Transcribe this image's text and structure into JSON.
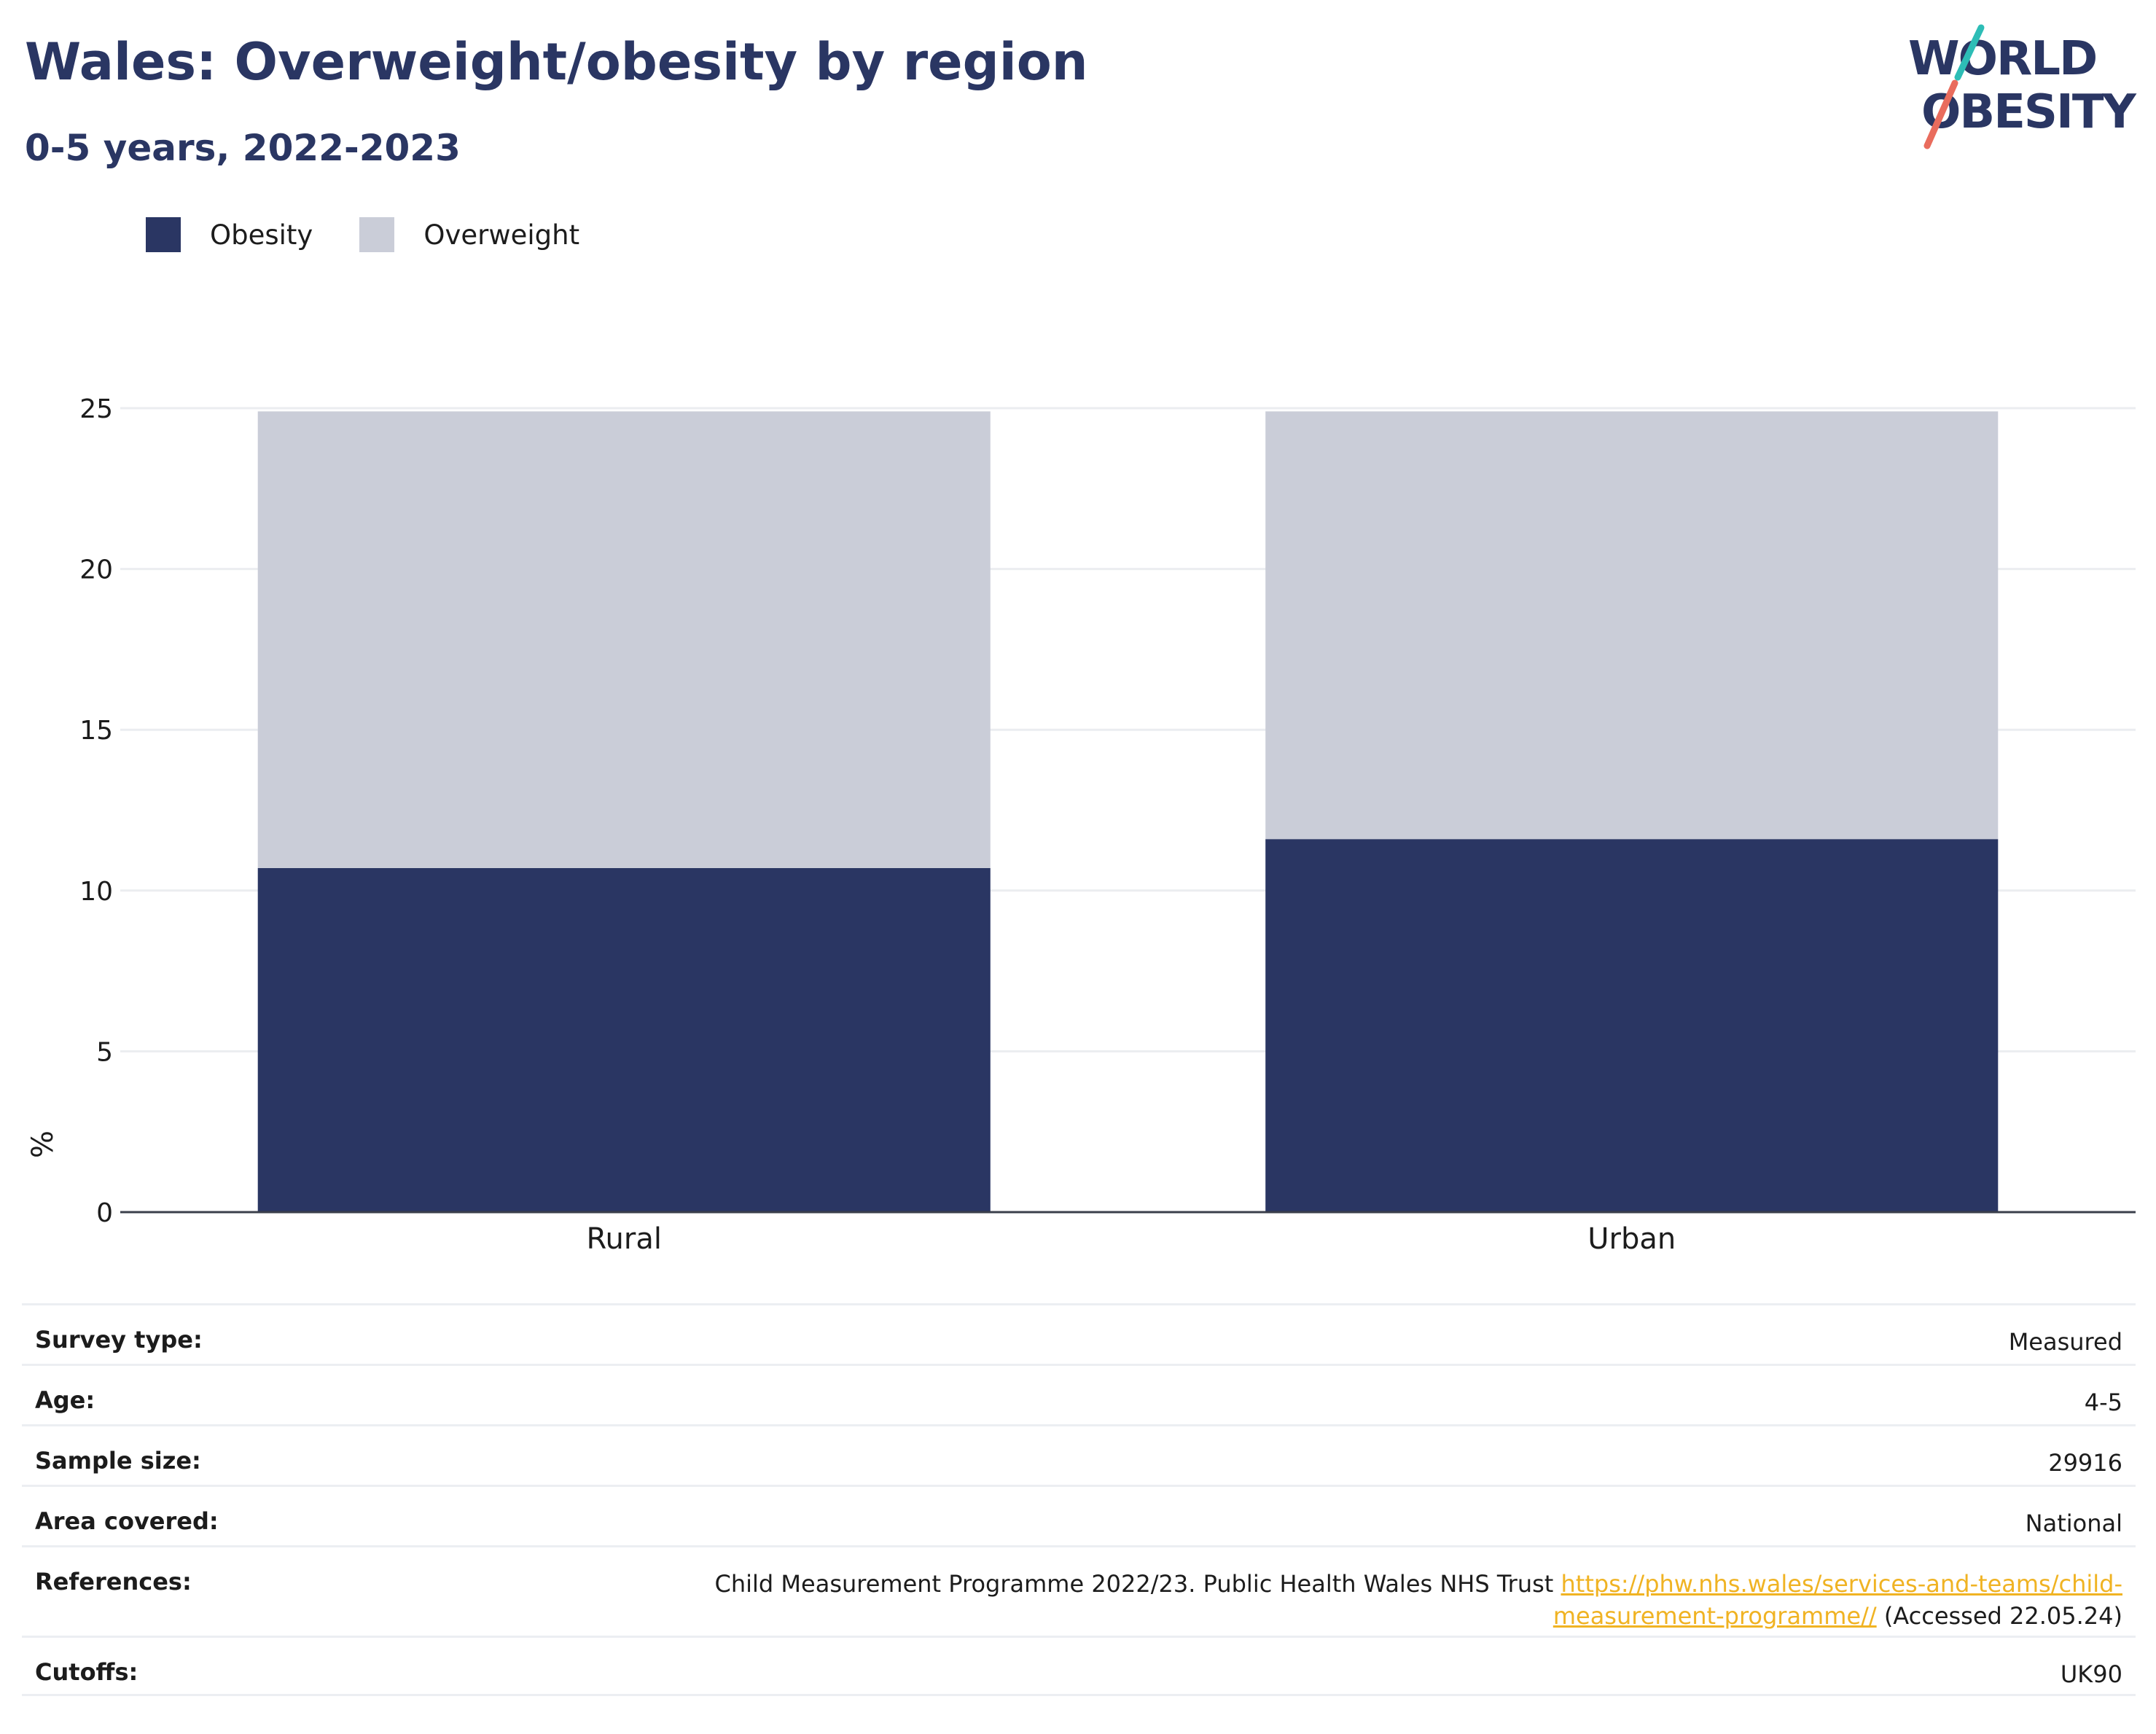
{
  "header": {
    "title": "Wales: Overweight/obesity by region",
    "subtitle": "0-5 years, 2022-2023"
  },
  "logo": {
    "line1": "WORLD",
    "line2": "OBESITY",
    "accent_teal": "#2dbdb6",
    "accent_coral": "#e96c5d"
  },
  "legend": {
    "items": [
      {
        "label": "Obesity",
        "color": "#2a3663"
      },
      {
        "label": "Overweight",
        "color": "#cacdd8"
      }
    ]
  },
  "chart_data": {
    "type": "bar",
    "stacked": true,
    "categories": [
      "Rural",
      "Urban"
    ],
    "series": [
      {
        "name": "Obesity",
        "values": [
          10.7,
          11.6
        ],
        "color": "#2a3663"
      },
      {
        "name": "Overweight",
        "values": [
          14.2,
          13.3
        ],
        "color": "#cacdd8"
      }
    ],
    "ylabel": "%",
    "ylim": [
      0,
      25
    ],
    "yticks": [
      0,
      5,
      10,
      15,
      20,
      25
    ],
    "grid": true,
    "legend_position": "top-left"
  },
  "meta": {
    "rows": [
      {
        "label": "Survey type:",
        "value": "Measured"
      },
      {
        "label": "Age:",
        "value": "4-5"
      },
      {
        "label": "Sample size:",
        "value": "29916"
      },
      {
        "label": "Area covered:",
        "value": "National"
      },
      {
        "label": "Cutoffs:",
        "value": "UK90"
      }
    ],
    "references": {
      "label": "References:",
      "text": "Child Measurement Programme 2022/23. Public Health Wales NHS Trust",
      "link_line1": "https://phw.nhs.wales/services-and-teams/child-",
      "link_line2": "measurement-programme//",
      "accessed": "(Accessed 22.05.24)"
    }
  }
}
